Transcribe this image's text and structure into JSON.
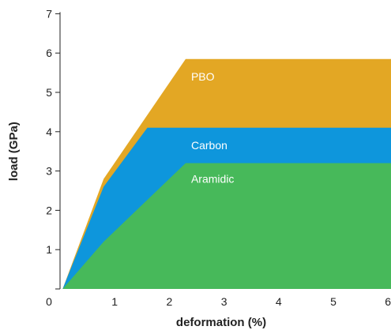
{
  "chart_data": {
    "type": "area",
    "xlabel": "deformation (%)",
    "ylabel": "load (GPa)",
    "xlim": [
      0,
      6
    ],
    "ylim": [
      0,
      7
    ],
    "x_ticks": [
      "0",
      "1",
      "2",
      "3",
      "4",
      "5",
      "6"
    ],
    "y_ticks": [
      "1",
      "2",
      "3",
      "4",
      "5",
      "6",
      "7"
    ],
    "grid": false,
    "series": [
      {
        "name": "PBO",
        "color": "#E3A724",
        "points": [
          [
            0.25,
            0
          ],
          [
            1.0,
            2.8
          ],
          [
            2.5,
            5.85
          ],
          [
            6.0,
            5.85
          ]
        ]
      },
      {
        "name": "Carbon",
        "color": "#0E96DC",
        "points": [
          [
            0.25,
            0
          ],
          [
            1.0,
            2.6
          ],
          [
            1.8,
            4.1
          ],
          [
            6.0,
            4.1
          ]
        ]
      },
      {
        "name": "Aramidic",
        "color": "#47B95A",
        "points": [
          [
            0.25,
            0
          ],
          [
            1.0,
            1.2
          ],
          [
            1.6,
            2.0
          ],
          [
            2.5,
            3.2
          ],
          [
            6.0,
            3.2
          ]
        ]
      }
    ]
  }
}
